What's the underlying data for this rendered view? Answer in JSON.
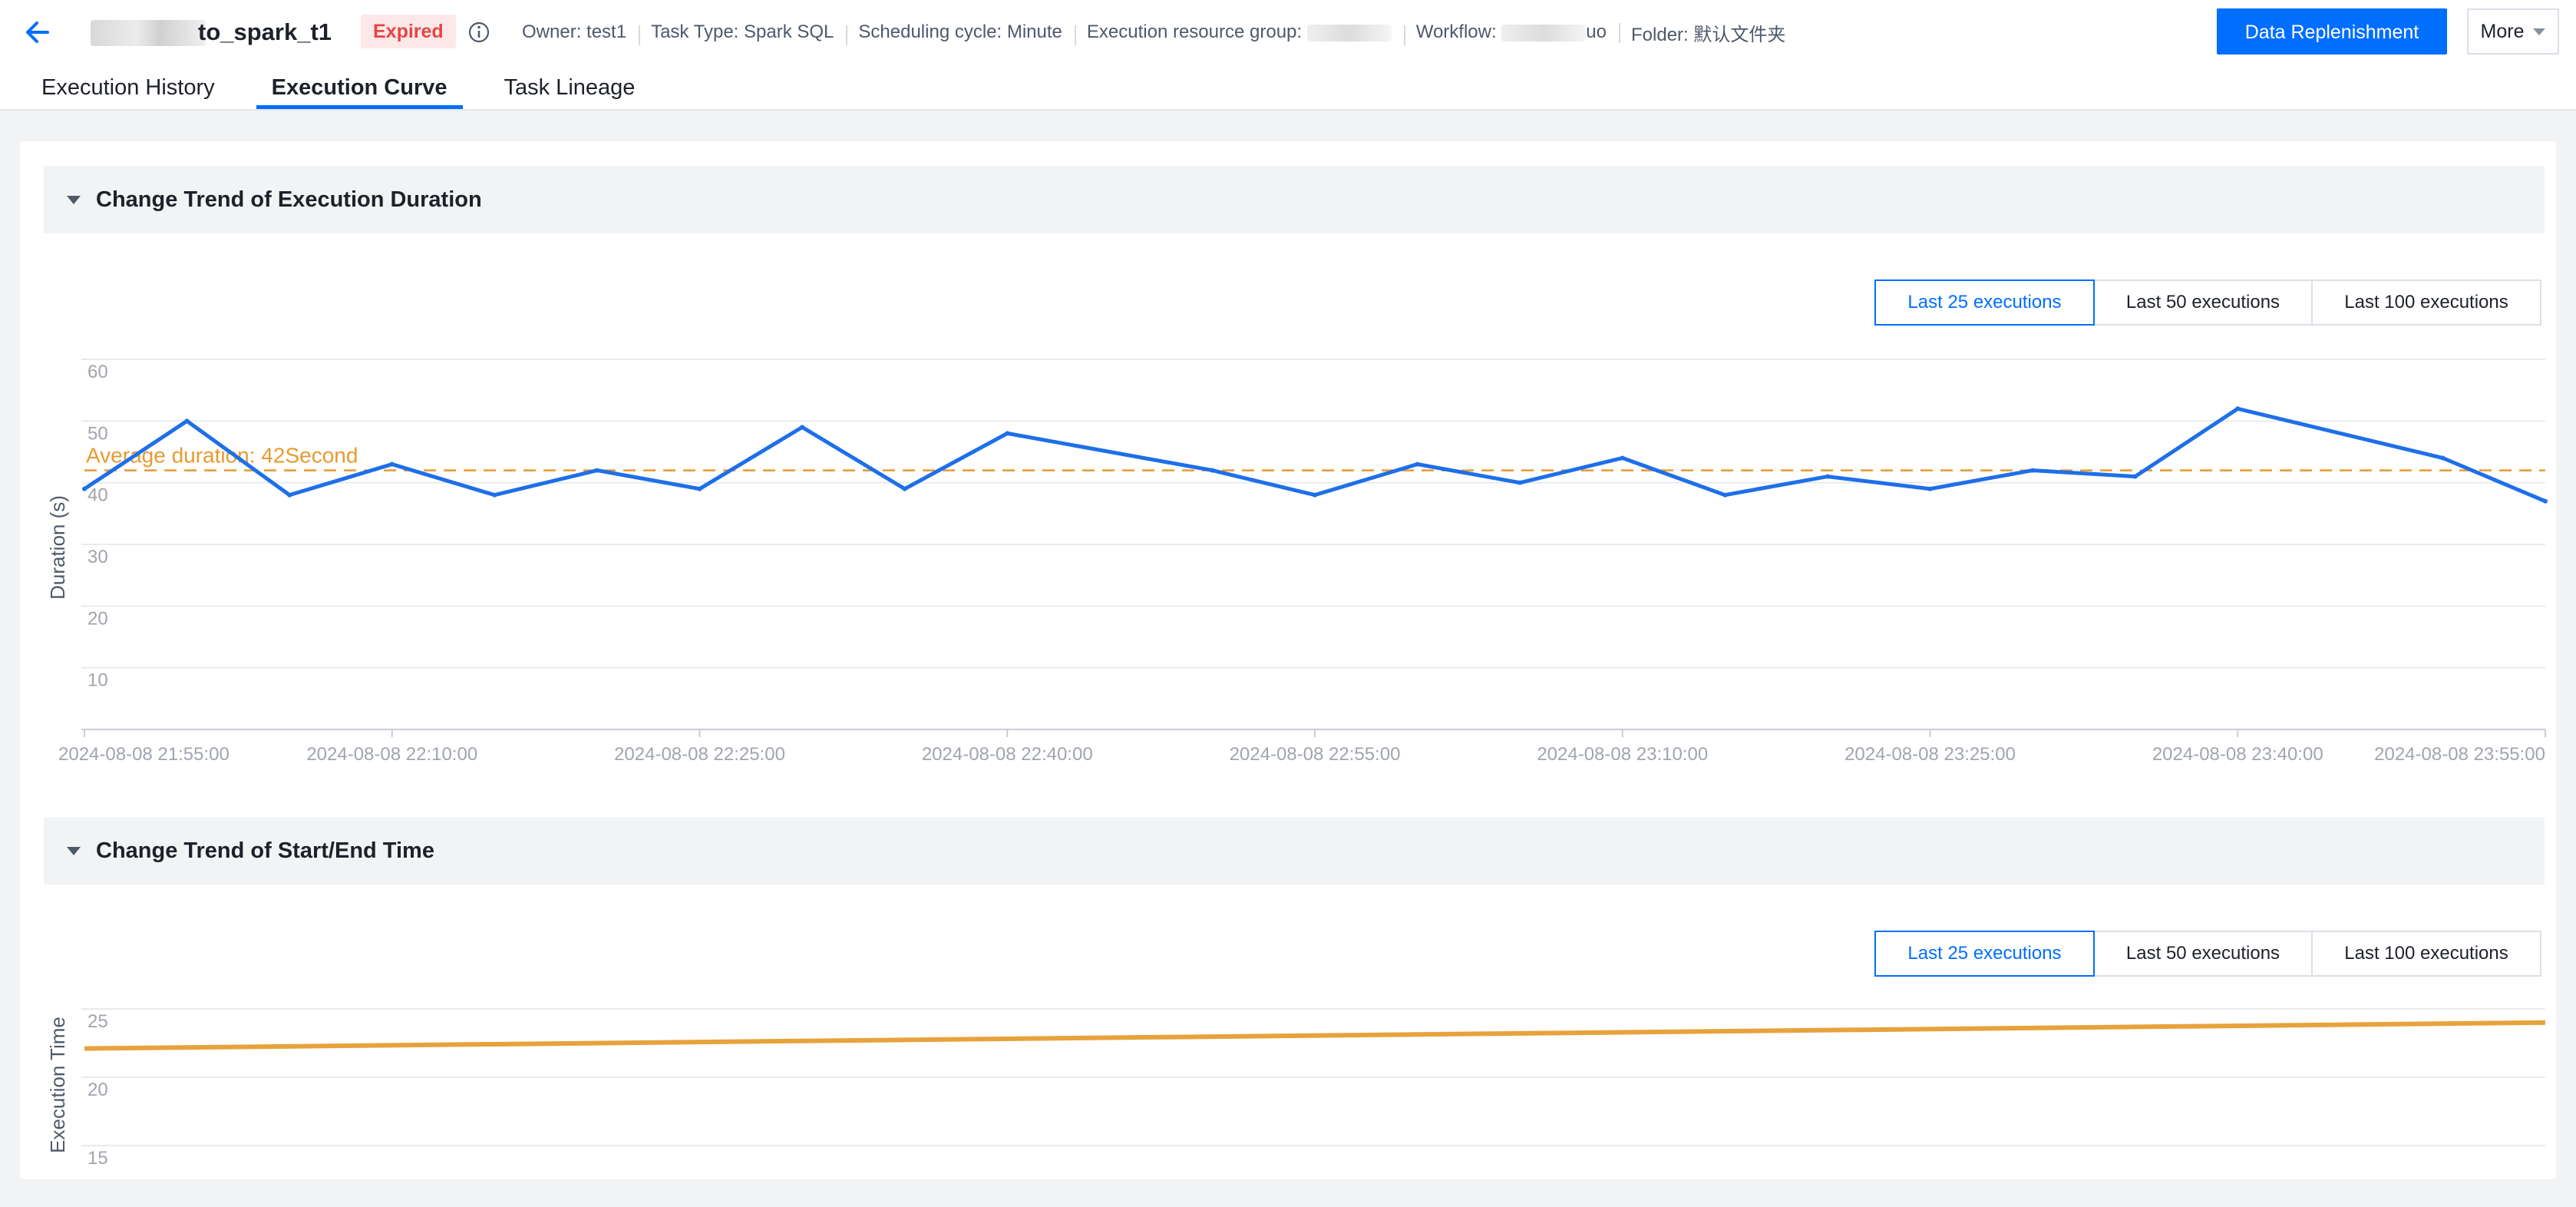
{
  "header": {
    "task_name": "to_spark_t1",
    "status": "Expired",
    "meta": [
      {
        "key": "owner",
        "text": "Owner: test1"
      },
      {
        "key": "task_type",
        "text": "Task Type: Spark SQL"
      },
      {
        "key": "schedule",
        "text": "Scheduling cycle: Minute"
      },
      {
        "key": "resource_group",
        "text": "Execution resource group: "
      },
      {
        "key": "workflow",
        "text": "Workflow: ",
        "suffix": "uo"
      },
      {
        "key": "folder",
        "text": "Folder: 默认文件夹"
      }
    ],
    "primary_button": "Data Replenishment",
    "more_button": "More"
  },
  "tabs": [
    {
      "label": "Execution History",
      "active": false
    },
    {
      "label": "Execution Curve",
      "active": true
    },
    {
      "label": "Task Lineage",
      "active": false
    }
  ],
  "sections": {
    "duration": {
      "title": "Change Trend of Execution Duration",
      "ranges": [
        "Last 25 executions",
        "Last 50 executions",
        "Last 100 executions"
      ],
      "selected_range": 0
    },
    "start_end": {
      "title": "Change Trend of Start/End Time",
      "ranges": [
        "Last 25 executions",
        "Last 50 executions",
        "Last 100 executions"
      ],
      "selected_range": 0
    }
  },
  "colors": {
    "primary": "#006eff",
    "duration_line": "#1e6fe8",
    "average_line": "#e89a30",
    "start_end_line": "#e8a23c",
    "expired": "#e54545"
  },
  "chart_data": [
    {
      "type": "line",
      "title": "Change Trend of Execution Duration",
      "ylabel": "Duration (s)",
      "ylim": [
        0,
        60
      ],
      "yticks": [
        10,
        20,
        30,
        40,
        50,
        60
      ],
      "xlim": [
        "2024-08-08 21:55:00",
        "2024-08-08 23:55:00"
      ],
      "xticks": [
        "2024-08-08 21:55:00",
        "2024-08-08 22:10:00",
        "2024-08-08 22:25:00",
        "2024-08-08 22:40:00",
        "2024-08-08 22:55:00",
        "2024-08-08 23:10:00",
        "2024-08-08 23:25:00",
        "2024-08-08 23:40:00",
        "2024-08-08 23:55:00"
      ],
      "grid": true,
      "average": {
        "value": 42,
        "label": "Average duration: 42Second"
      },
      "series": [
        {
          "x": [
            "2024-08-08 21:55:00",
            "2024-08-08 22:00:00",
            "2024-08-08 22:05:00",
            "2024-08-08 22:10:00",
            "2024-08-08 22:15:00",
            "2024-08-08 22:20:00",
            "2024-08-08 22:25:00",
            "2024-08-08 22:30:00",
            "2024-08-08 22:35:00",
            "2024-08-08 22:40:00",
            "2024-08-08 22:50:00",
            "2024-08-08 22:55:00",
            "2024-08-08 23:00:00",
            "2024-08-08 23:05:00",
            "2024-08-08 23:10:00",
            "2024-08-08 23:15:00",
            "2024-08-08 23:20:00",
            "2024-08-08 23:25:00",
            "2024-08-08 23:30:00",
            "2024-08-08 23:35:00",
            "2024-08-08 23:40:00",
            "2024-08-08 23:50:00",
            "2024-08-08 23:55:00"
          ],
          "values": [
            39,
            50,
            38,
            43,
            38,
            42,
            39,
            49,
            39,
            48,
            42,
            38,
            43,
            40,
            44,
            38,
            41,
            39,
            42,
            41,
            52,
            44,
            37
          ]
        }
      ]
    },
    {
      "type": "line",
      "title": "Change Trend of Start/End Time",
      "ylabel": "Execution Time",
      "ylim": [
        15,
        25
      ],
      "yticks": [
        15,
        20,
        25
      ],
      "grid": true,
      "series": [
        {
          "x": [
            "2024-08-08 21:55:00",
            "2024-08-08 23:55:00"
          ],
          "values": [
            22.1,
            24.0
          ]
        }
      ]
    }
  ]
}
